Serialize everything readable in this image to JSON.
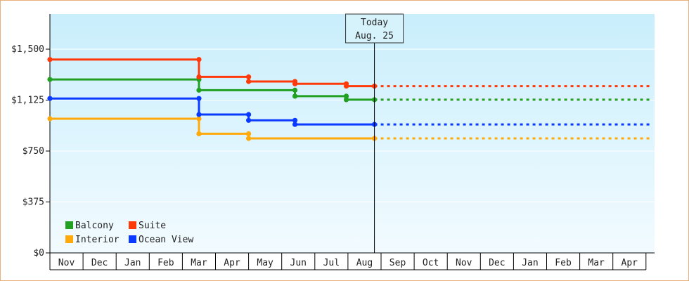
{
  "chart_data": {
    "type": "line",
    "step": true,
    "y_tick_labels": [
      "$0",
      "$375",
      "$750",
      "$1,125",
      "$1,500"
    ],
    "y_tick_values": [
      0,
      375,
      750,
      1125,
      1500
    ],
    "ylim": [
      0,
      1500
    ],
    "x_tick_labels": [
      "Nov",
      "Dec",
      "Jan",
      "Feb",
      "Mar",
      "Apr",
      "May",
      "Jun",
      "Jul",
      "Aug",
      "Sep",
      "Oct",
      "Nov",
      "Dec",
      "Jan",
      "Feb",
      "Mar",
      "Apr"
    ],
    "today_marker": {
      "title": "Today",
      "date": "Aug. 25"
    },
    "colors": {
      "balcony": "#22a022",
      "suite": "#ff3a0a",
      "interior": "#ffa90a",
      "ocean_view": "#0a3aff"
    },
    "series": [
      {
        "name": "Balcony",
        "color_key": "balcony",
        "points": [
          [
            0,
            1277
          ],
          [
            4.5,
            1277
          ],
          [
            4.5,
            1198
          ],
          [
            7.4,
            1198
          ],
          [
            7.4,
            1154
          ],
          [
            8.95,
            1154
          ],
          [
            8.95,
            1128
          ],
          [
            9.8,
            1128
          ]
        ],
        "projection_to": 18.2
      },
      {
        "name": "Suite",
        "color_key": "suite",
        "points": [
          [
            0,
            1424
          ],
          [
            4.5,
            1424
          ],
          [
            4.5,
            1296
          ],
          [
            6.0,
            1296
          ],
          [
            6.0,
            1262
          ],
          [
            7.4,
            1262
          ],
          [
            7.4,
            1245
          ],
          [
            8.95,
            1245
          ],
          [
            8.95,
            1228
          ],
          [
            9.8,
            1228
          ]
        ],
        "projection_to": 18.2
      },
      {
        "name": "Interior",
        "color_key": "interior",
        "points": [
          [
            0,
            988
          ],
          [
            4.5,
            988
          ],
          [
            4.5,
            877
          ],
          [
            6.0,
            877
          ],
          [
            6.0,
            843
          ],
          [
            9.8,
            843
          ]
        ],
        "projection_to": 18.2
      },
      {
        "name": "Ocean View",
        "color_key": "ocean_view",
        "points": [
          [
            0,
            1137
          ],
          [
            4.5,
            1137
          ],
          [
            4.5,
            1019
          ],
          [
            6.0,
            1019
          ],
          [
            6.0,
            976
          ],
          [
            7.4,
            976
          ],
          [
            7.4,
            946
          ],
          [
            9.8,
            946
          ]
        ],
        "projection_to": 18.2
      }
    ],
    "legend": {
      "placement": "bottom-left",
      "items": [
        {
          "label": "Balcony",
          "color_key": "balcony"
        },
        {
          "label": "Suite",
          "color_key": "suite"
        },
        {
          "label": "Interior",
          "color_key": "interior"
        },
        {
          "label": "Ocean View",
          "color_key": "ocean_view"
        }
      ]
    }
  }
}
